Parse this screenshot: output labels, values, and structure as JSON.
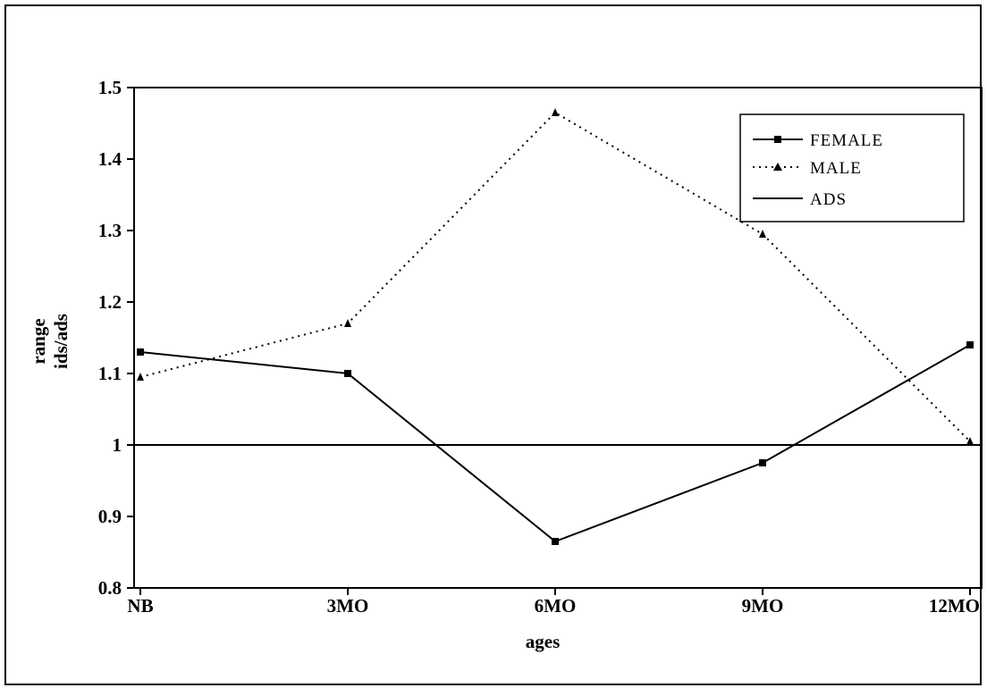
{
  "chart_data": {
    "type": "line",
    "title": "",
    "xlabel": "ages",
    "ylabel": [
      "range",
      "ids/ads"
    ],
    "categories": [
      "NB",
      "3MO",
      "6MO",
      "9MO",
      "12MO"
    ],
    "ylim": [
      0.8,
      1.5
    ],
    "yticks": [
      "0.8",
      "0.9",
      "1",
      "1.1",
      "1.2",
      "1.3",
      "1.4",
      "1.5"
    ],
    "grid": false,
    "legend_position": "top-right",
    "series": [
      {
        "name": "FEMALE",
        "values": [
          1.13,
          1.1,
          0.865,
          0.975,
          1.14
        ],
        "style": "solid",
        "marker": "square",
        "color": "#000000"
      },
      {
        "name": "MALE",
        "values": [
          1.095,
          1.17,
          1.465,
          1.295,
          1.005
        ],
        "style": "dotted",
        "marker": "triangle",
        "color": "#000000"
      },
      {
        "name": "ADS",
        "values": [
          1.0,
          1.0,
          1.0,
          1.0,
          1.0
        ],
        "style": "solid",
        "marker": "none",
        "color": "#000000"
      }
    ]
  }
}
